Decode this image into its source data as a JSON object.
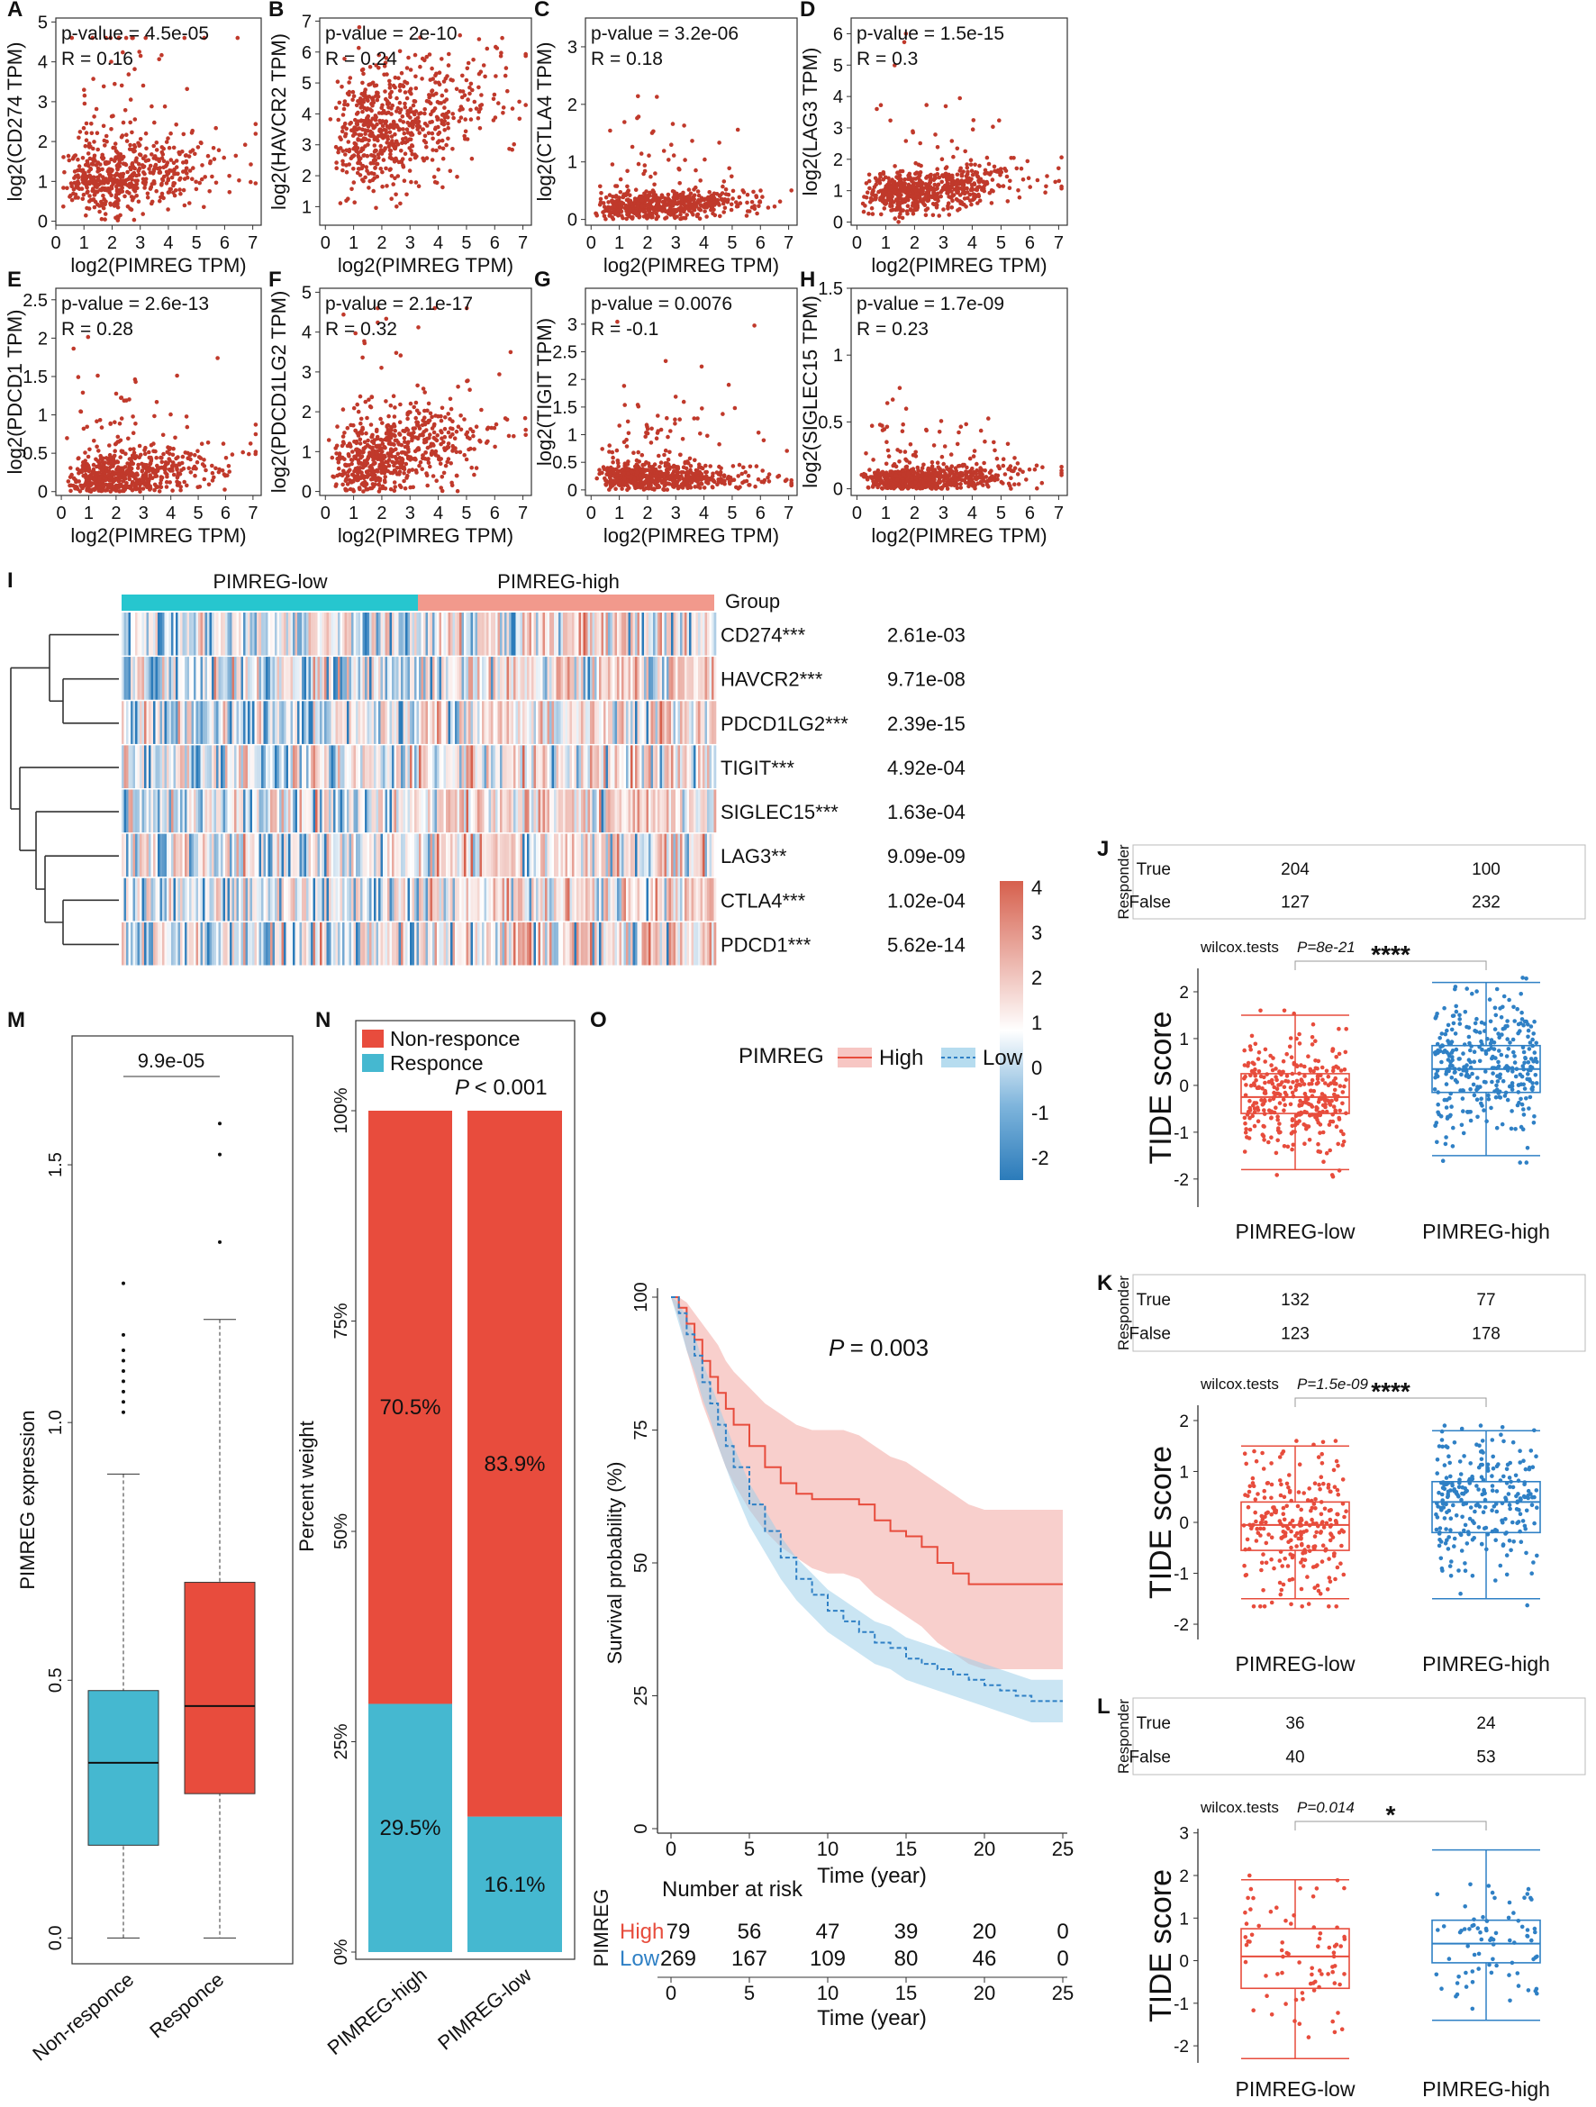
{
  "figure": {
    "xlabel_common": "log2(PIMREG TPM)",
    "colors": {
      "scatter": "#c0392b",
      "low": "#e74c3c",
      "high": "#2f80c5",
      "cyan": "#26c6cf",
      "salmon": "#f2998c",
      "heat_high": "#d6604d",
      "heat_low": "#2b7bba",
      "responder_high": "#e84c3d",
      "responder_low": "#45b8d0"
    }
  },
  "chart_data": [
    {
      "id": "A",
      "type": "scatter",
      "panel_label": "A",
      "title": "",
      "xlabel": "log2(PIMREG TPM)",
      "ylabel": "log2(CD274 TPM)",
      "xlim": [
        0,
        7.3
      ],
      "ylim": [
        -0.1,
        5.1
      ],
      "xticks": [
        0,
        1,
        2,
        3,
        4,
        5,
        6,
        7
      ],
      "yticks": [
        0,
        1,
        2,
        3,
        4,
        5
      ],
      "stats": [
        "p-value = 4.5e-05",
        "R = 0.16"
      ],
      "pattern": {
        "n": 600,
        "base": 0.9,
        "slope": 0.08,
        "spread": 0.45,
        "tail": 0.15,
        "tailscale": 1.6,
        "max": 4.6,
        "seed": 11
      }
    },
    {
      "id": "B",
      "type": "scatter",
      "panel_label": "B",
      "title": "",
      "xlabel": "log2(PIMREG TPM)",
      "ylabel": "log2(HAVCR2 TPM)",
      "xlim": [
        -0.2,
        7.3
      ],
      "ylim": [
        0.4,
        7.1
      ],
      "xticks": [
        0,
        1,
        2,
        3,
        4,
        5,
        6,
        7
      ],
      "yticks": [
        1,
        2,
        3,
        4,
        5,
        6,
        7
      ],
      "stats": [
        "p-value = 2e-10",
        "R = 0.24"
      ],
      "pattern": {
        "n": 650,
        "base": 3.0,
        "slope": 0.25,
        "spread": 0.95,
        "tail": 0.02,
        "tailscale": 1.0,
        "max": 6.8,
        "min": 0.7,
        "seed": 22
      }
    },
    {
      "id": "C",
      "type": "scatter",
      "panel_label": "C",
      "title": "",
      "xlabel": "log2(PIMREG TPM)",
      "ylabel": "log2(CTLA4 TPM)",
      "xlim": [
        -0.2,
        7.3
      ],
      "ylim": [
        -0.1,
        3.5
      ],
      "xticks": [
        0,
        1,
        2,
        3,
        4,
        5,
        6,
        7
      ],
      "yticks": [
        0,
        1,
        2,
        3
      ],
      "stats": [
        "p-value = 3.2e-06",
        "R = 0.18"
      ],
      "pattern": {
        "n": 600,
        "base": 0.2,
        "slope": 0.02,
        "spread": 0.12,
        "tail": 0.1,
        "tailscale": 0.6,
        "max": 3.2,
        "seed": 33
      }
    },
    {
      "id": "D",
      "type": "scatter",
      "panel_label": "D",
      "title": "",
      "xlabel": "log2(PIMREG TPM)",
      "ylabel": "log2(LAG3 TPM)",
      "xlim": [
        -0.2,
        7.3
      ],
      "ylim": [
        -0.1,
        6.5
      ],
      "xticks": [
        0,
        1,
        2,
        3,
        4,
        5,
        6,
        7
      ],
      "yticks": [
        0,
        1,
        2,
        3,
        4,
        5,
        6
      ],
      "stats": [
        "p-value = 1.5e-15",
        "R = 0.3"
      ],
      "pattern": {
        "n": 650,
        "base": 0.75,
        "slope": 0.1,
        "spread": 0.35,
        "tail": 0.08,
        "tailscale": 1.2,
        "max": 6.0,
        "seed": 44
      }
    },
    {
      "id": "E",
      "type": "scatter",
      "panel_label": "E",
      "title": "",
      "xlabel": "log2(PIMREG TPM)",
      "ylabel": "log2(PDCD1 TPM)",
      "xlim": [
        -0.2,
        7.3
      ],
      "ylim": [
        -0.05,
        2.65
      ],
      "xticks": [
        0,
        1,
        2,
        3,
        4,
        5,
        6,
        7
      ],
      "yticks": [
        0.0,
        0.5,
        1.0,
        1.5,
        2.0,
        2.5
      ],
      "stats": [
        "p-value = 2.6e-13",
        "R = 0.28"
      ],
      "pattern": {
        "n": 650,
        "base": 0.1,
        "slope": 0.04,
        "spread": 0.15,
        "tail": 0.15,
        "tailscale": 0.45,
        "max": 2.5,
        "seed": 55
      }
    },
    {
      "id": "F",
      "type": "scatter",
      "panel_label": "F",
      "title": "",
      "xlabel": "log2(PIMREG TPM)",
      "ylabel": "log2(PDCD1LG2 TPM)",
      "xlim": [
        -0.2,
        7.3
      ],
      "ylim": [
        -0.1,
        5.1
      ],
      "xticks": [
        0,
        1,
        2,
        3,
        4,
        5,
        6,
        7
      ],
      "yticks": [
        0,
        1,
        2,
        3,
        4,
        5
      ],
      "stats": [
        "p-value = 2.1e-17",
        "R = 0.32"
      ],
      "pattern": {
        "n": 650,
        "base": 0.5,
        "slope": 0.18,
        "spread": 0.55,
        "tail": 0.06,
        "tailscale": 1.3,
        "max": 4.6,
        "seed": 66
      }
    },
    {
      "id": "G",
      "type": "scatter",
      "panel_label": "G",
      "title": "",
      "xlabel": "log2(PIMREG TPM)",
      "ylabel": "log2(TIGIT TPM)",
      "xlim": [
        -0.2,
        7.3
      ],
      "ylim": [
        -0.1,
        3.65
      ],
      "xticks": [
        0,
        1,
        2,
        3,
        4,
        5,
        6,
        7
      ],
      "yticks": [
        0.0,
        0.5,
        1.0,
        1.5,
        2.0,
        2.5,
        3.0
      ],
      "stats": [
        "p-value = 0.0076",
        "R = -0.1"
      ],
      "pattern": {
        "n": 650,
        "base": 0.25,
        "slope": -0.01,
        "spread": 0.12,
        "tail": 0.12,
        "tailscale": 0.55,
        "max": 3.5,
        "seed": 77
      }
    },
    {
      "id": "H",
      "type": "scatter",
      "panel_label": "H",
      "title": "",
      "xlabel": "log2(PIMREG TPM)",
      "ylabel": "log2(SIGLEC15 TPM)",
      "xlim": [
        -0.2,
        7.3
      ],
      "ylim": [
        -0.05,
        1.5
      ],
      "xticks": [
        0,
        1,
        2,
        3,
        4,
        5,
        6,
        7
      ],
      "yticks": [
        0.0,
        0.5,
        1.0,
        1.5
      ],
      "stats": [
        "p-value = 1.7e-09",
        "R = 0.23"
      ],
      "pattern": {
        "n": 650,
        "base": 0.04,
        "slope": 0.012,
        "spread": 0.05,
        "tail": 0.12,
        "tailscale": 0.18,
        "max": 0.85,
        "seed": 88
      }
    },
    {
      "id": "I",
      "type": "heatmap",
      "panel_label": "I",
      "groups": [
        "PIMREG-low",
        "PIMREG-high"
      ],
      "group_legend": "Group",
      "rows": [
        "CD274***",
        "HAVCR2***",
        "PDCD1LG2***",
        "TIGIT***",
        "SIGLEC15***",
        "LAG3**",
        "CTLA4***",
        "PDCD1***"
      ],
      "pvalues": [
        "2.61e-03",
        "9.71e-08",
        "2.39e-15",
        "4.92e-04",
        "1.63e-04",
        "9.09e-09",
        "1.02e-04",
        "5.62e-14"
      ],
      "colorbar": {
        "min": -2.5,
        "max": 4,
        "ticks": [
          4,
          3,
          2,
          1,
          0,
          -1,
          -2
        ]
      }
    },
    {
      "id": "J",
      "type": "boxplot",
      "panel_label": "J",
      "categories": [
        "PIMREG-low",
        "PIMREG-high"
      ],
      "responder_label": "Responder",
      "table": {
        "rows": [
          "True",
          "False"
        ],
        "values": [
          [
            "204",
            "100"
          ],
          [
            "127",
            "232"
          ]
        ]
      },
      "test_label": "wilcox.tests",
      "p_label": "P=8e-21",
      "signif": "****",
      "ylabel": "TIDE score",
      "ylim": [
        -2.6,
        2.5
      ],
      "yticks": [
        -2,
        -1,
        0,
        1,
        2
      ],
      "boxes": [
        {
          "name": "PIMREG-low",
          "q1": -0.6,
          "median": -0.25,
          "q3": 0.25,
          "lo": -1.8,
          "hi": 1.5,
          "n": 330,
          "seed": 101
        },
        {
          "name": "PIMREG-high",
          "q1": -0.15,
          "median": 0.35,
          "q3": 0.85,
          "lo": -1.5,
          "hi": 2.2,
          "n": 330,
          "seed": 102
        }
      ]
    },
    {
      "id": "K",
      "type": "boxplot",
      "panel_label": "K",
      "categories": [
        "PIMREG-low",
        "PIMREG-high"
      ],
      "responder_label": "Responder",
      "table": {
        "rows": [
          "True",
          "False"
        ],
        "values": [
          [
            "132",
            "77"
          ],
          [
            "123",
            "178"
          ]
        ]
      },
      "test_label": "wilcox.tests",
      "p_label": "P=1.5e-09",
      "signif": "****",
      "ylabel": "TIDE score",
      "ylim": [
        -2.3,
        2.3
      ],
      "yticks": [
        -2,
        -1,
        0,
        1,
        2
      ],
      "boxes": [
        {
          "name": "PIMREG-low",
          "q1": -0.55,
          "median": -0.05,
          "q3": 0.4,
          "lo": -1.5,
          "hi": 1.5,
          "n": 255,
          "seed": 201
        },
        {
          "name": "PIMREG-high",
          "q1": -0.2,
          "median": 0.4,
          "q3": 0.8,
          "lo": -1.5,
          "hi": 1.8,
          "n": 255,
          "seed": 202
        }
      ]
    },
    {
      "id": "L",
      "type": "boxplot",
      "panel_label": "L",
      "categories": [
        "PIMREG-low",
        "PIMREG-high"
      ],
      "responder_label": "Responder",
      "table": {
        "rows": [
          "True",
          "False"
        ],
        "values": [
          [
            "36",
            "24"
          ],
          [
            "40",
            "53"
          ]
        ]
      },
      "test_label": "wilcox.tests",
      "p_label": "P=0.014",
      "signif": "*",
      "ylabel": "TIDE score",
      "ylim": [
        -2.4,
        3.1
      ],
      "yticks": [
        -2,
        -1,
        0,
        1,
        2,
        3
      ],
      "boxes": [
        {
          "name": "PIMREG-low",
          "q1": -0.65,
          "median": 0.1,
          "q3": 0.75,
          "lo": -2.3,
          "hi": 1.9,
          "n": 76,
          "seed": 301
        },
        {
          "name": "PIMREG-high",
          "q1": -0.05,
          "median": 0.4,
          "q3": 0.95,
          "lo": -1.4,
          "hi": 2.6,
          "n": 77,
          "seed": 302
        }
      ]
    },
    {
      "id": "M",
      "type": "boxplot",
      "panel_label": "M",
      "categories": [
        "Non-responce",
        "Responce"
      ],
      "ylabel": "PIMREG expression",
      "ylim": [
        -0.05,
        1.75
      ],
      "yticks": [
        0.0,
        0.5,
        1.0,
        1.5
      ],
      "ytick_labels": [
        "0.0",
        "0.5",
        "1.0",
        "1.5"
      ],
      "p_label": "9.9e-05",
      "boxes": [
        {
          "name": "Non-responce",
          "q1": 0.18,
          "median": 0.34,
          "q3": 0.48,
          "lo": 0.0,
          "hi": 0.9,
          "outliers": [
            1.02,
            1.04,
            1.06,
            1.08,
            1.1,
            1.12,
            1.14,
            1.17,
            1.27
          ]
        },
        {
          "name": "Responce",
          "q1": 0.28,
          "median": 0.45,
          "q3": 0.69,
          "lo": 0.0,
          "hi": 1.2,
          "outliers": [
            1.35,
            1.52,
            1.58
          ]
        }
      ]
    },
    {
      "id": "N",
      "type": "bar",
      "panel_label": "N",
      "stacked": true,
      "categories": [
        "PIMREG-high",
        "PIMREG-low"
      ],
      "series": [
        {
          "name": "Responce",
          "values": [
            29.5,
            16.1
          ],
          "labels": [
            "29.5%",
            "16.1%"
          ]
        },
        {
          "name": "Non-responce",
          "values": [
            70.5,
            83.9
          ],
          "labels": [
            "70.5%",
            "83.9%"
          ]
        }
      ],
      "legend": [
        "Non-responce",
        "Responce"
      ],
      "ylabel": "Percent weight",
      "ylim": [
        0,
        100
      ],
      "yticks": [
        0,
        25,
        50,
        75,
        100
      ],
      "ytick_labels": [
        "0%",
        "25%",
        "50%",
        "75%",
        "100%"
      ],
      "p_label": "< 0.001"
    },
    {
      "id": "O",
      "type": "line",
      "panel_label": "O",
      "legend_title": "PIMREG",
      "series": [
        {
          "name": "High",
          "x": [
            0,
            0.5,
            1,
            1.5,
            2,
            2.5,
            3,
            3.5,
            4,
            5,
            6,
            7,
            8,
            9,
            10,
            11,
            12,
            13,
            14,
            15,
            16,
            17,
            18,
            19,
            20,
            21,
            22,
            23,
            24,
            25
          ],
          "values": [
            100,
            98,
            95,
            92,
            88,
            85,
            82,
            79,
            76,
            72,
            68,
            65,
            63,
            62,
            62,
            62,
            61,
            58,
            56,
            55,
            53,
            50,
            48,
            46,
            46,
            46,
            46,
            46,
            46,
            46
          ],
          "lo": [
            100,
            96,
            90,
            85,
            80,
            76,
            72,
            68,
            65,
            60,
            56,
            53,
            51,
            49,
            48,
            48,
            47,
            44,
            42,
            40,
            38,
            35,
            33,
            31,
            30,
            30,
            30,
            30,
            30,
            30
          ],
          "hi": [
            100,
            100,
            99,
            97,
            95,
            93,
            91,
            88,
            86,
            83,
            80,
            78,
            76,
            75,
            75,
            75,
            74,
            72,
            70,
            69,
            67,
            65,
            63,
            61,
            60,
            60,
            60,
            60,
            60,
            60
          ]
        },
        {
          "name": "Low",
          "x": [
            0,
            0.5,
            1,
            1.5,
            2,
            2.5,
            3,
            3.5,
            4,
            5,
            6,
            7,
            8,
            9,
            10,
            11,
            12,
            13,
            14,
            15,
            16,
            17,
            18,
            19,
            20,
            21,
            22,
            23,
            24,
            25
          ],
          "values": [
            100,
            97,
            93,
            89,
            84,
            80,
            76,
            72,
            68,
            61,
            56,
            51,
            47,
            44,
            41,
            39,
            37,
            35,
            34,
            32,
            31,
            30,
            29,
            28,
            27,
            26,
            25,
            24,
            24,
            24
          ],
          "lo": [
            100,
            95,
            90,
            86,
            81,
            77,
            72,
            68,
            64,
            57,
            52,
            47,
            43,
            40,
            37,
            35,
            33,
            31,
            30,
            28,
            27,
            26,
            25,
            24,
            23,
            22,
            21,
            20,
            20,
            20
          ],
          "hi": [
            100,
            99,
            96,
            93,
            88,
            84,
            80,
            76,
            72,
            65,
            60,
            55,
            51,
            48,
            45,
            43,
            41,
            39,
            38,
            36,
            35,
            34,
            33,
            32,
            31,
            30,
            29,
            28,
            28,
            28
          ]
        }
      ],
      "p_label": "= 0.003",
      "xlabel": "Time (year)",
      "ylabel": "Survival probability (%)",
      "xlim": [
        -1,
        25.5
      ],
      "ylim": [
        -3,
        103
      ],
      "xticks": [
        0,
        5,
        10,
        15,
        20,
        25
      ],
      "yticks": [
        0,
        25,
        50,
        75,
        100
      ],
      "risk_table": {
        "title": "Number at risk",
        "strata_label": "PIMREG",
        "rows": [
          {
            "name": "High",
            "values": [
              "79",
              "56",
              "47",
              "39",
              "20",
              "0"
            ]
          },
          {
            "name": "Low",
            "values": [
              "269",
              "167",
              "109",
              "80",
              "46",
              "0"
            ]
          }
        ],
        "xticks": [
          0,
          5,
          10,
          15,
          20,
          25
        ],
        "xlabel": "Time (year)"
      }
    }
  ]
}
